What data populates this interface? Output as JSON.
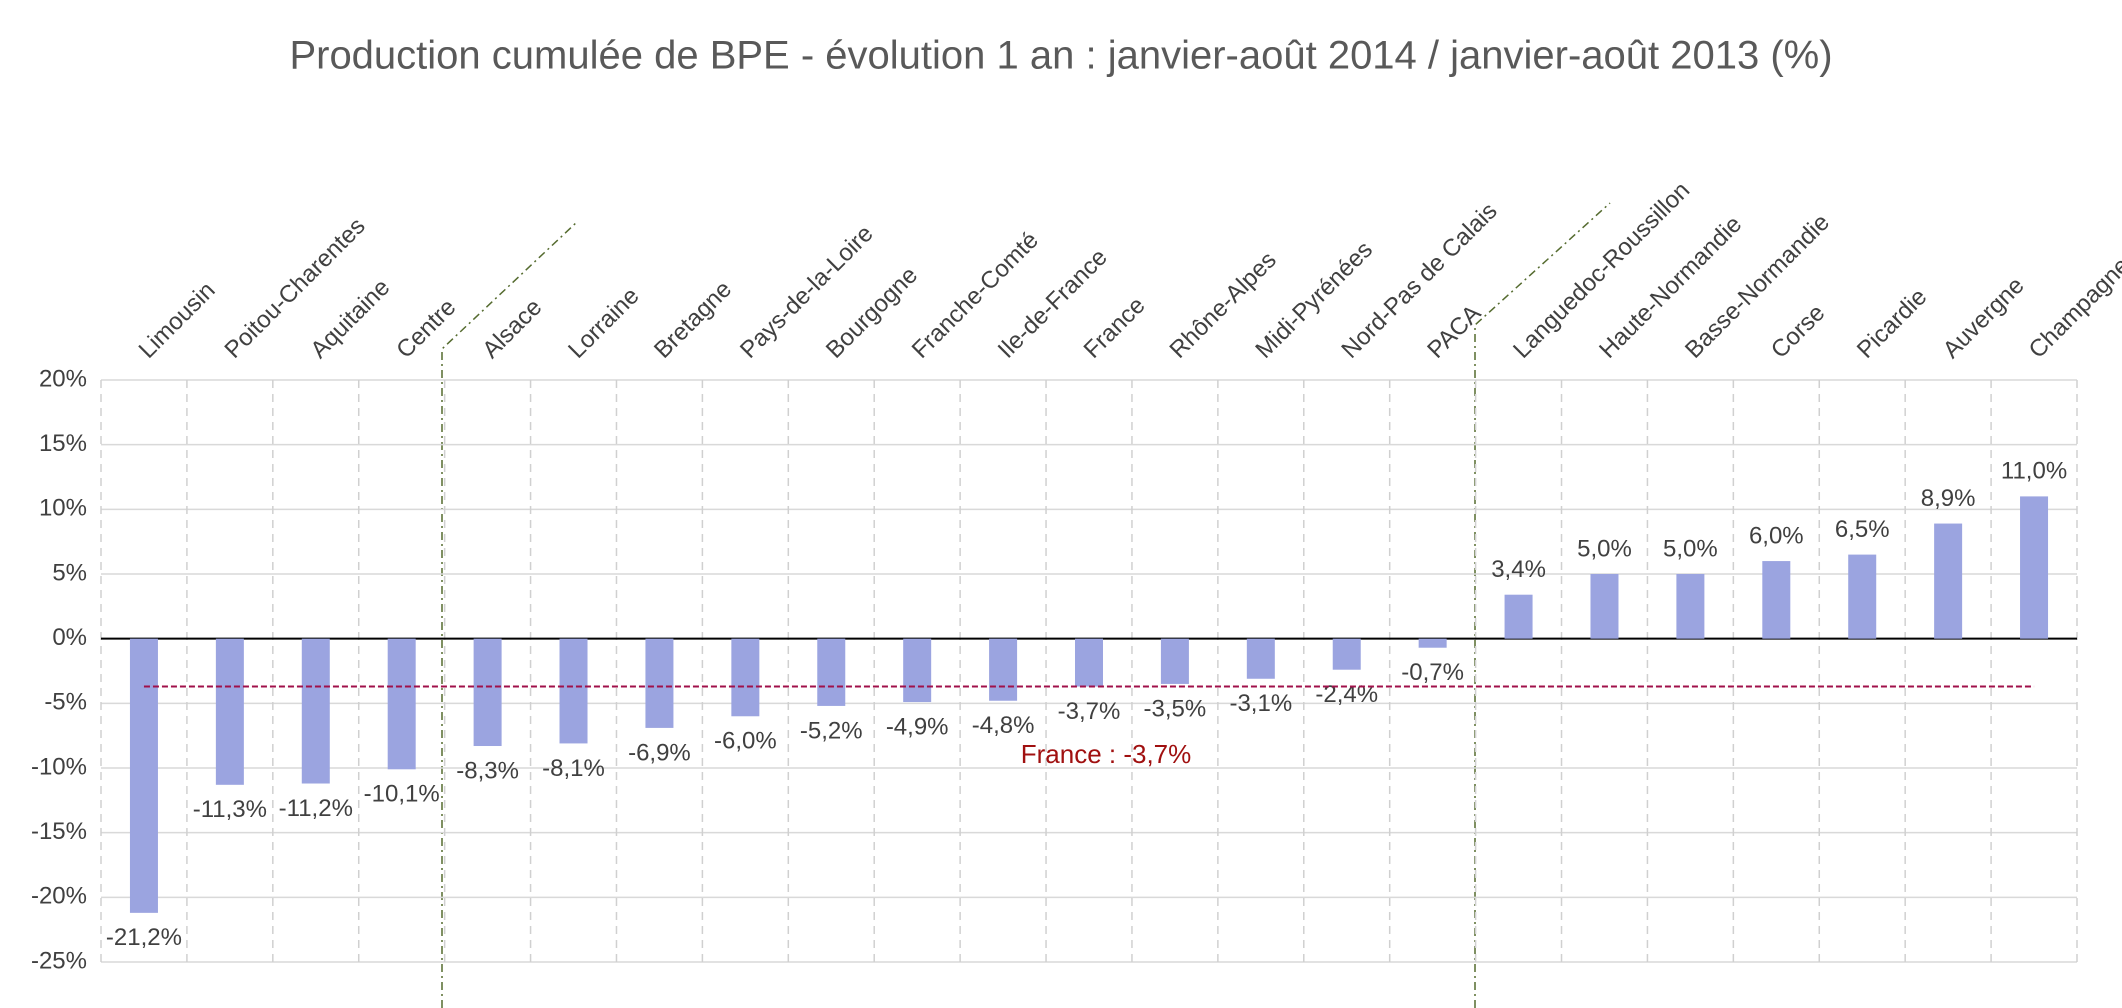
{
  "chart_data": {
    "type": "bar",
    "title": "Production cumulée de BPE - évolution 1 an : janvier-août 2014 / janvier-août 2013 (%)",
    "categories": [
      "Limousin",
      "Poitou-Charentes",
      "Aquitaine",
      "Centre",
      "Alsace",
      "Lorraine",
      "Bretagne",
      "Pays-de-la-Loire",
      "Bourgogne",
      "Franche-Comté",
      "Ile-de-France",
      "France",
      "Rhône-Alpes",
      "Midi-Pyrénées",
      "Nord-Pas de Calais",
      "PACA",
      "Languedoc-Roussillon",
      "Haute-Normandie",
      "Basse-Normandie",
      "Corse",
      "Picardie",
      "Auvergne",
      "Champagne-Ardenne"
    ],
    "values": [
      -21.2,
      -11.3,
      -11.2,
      -10.1,
      -8.3,
      -8.1,
      -6.9,
      -6.0,
      -5.2,
      -4.9,
      -4.8,
      -3.7,
      -3.5,
      -3.1,
      -2.4,
      -0.7,
      3.4,
      5.0,
      5.0,
      6.0,
      6.5,
      8.9,
      11.0
    ],
    "value_labels": [
      "-21,2%",
      "-11,3%",
      "-11,2%",
      "-10,1%",
      "-8,3%",
      "-8,1%",
      "-6,9%",
      "-6,0%",
      "-5,2%",
      "-4,9%",
      "-4,8%",
      "-3,7%",
      "-3,5%",
      "-3,1%",
      "-2,4%",
      "-0,7%",
      "3,4%",
      "5,0%",
      "5,0%",
      "6,0%",
      "6,5%",
      "8,9%",
      "11,0%"
    ],
    "color": "#9ba4e0",
    "ylim": [
      -25,
      20
    ],
    "yticks": [
      {
        "value": 20,
        "label": "20%"
      },
      {
        "value": 15,
        "label": "15%"
      },
      {
        "value": 10,
        "label": "10%"
      },
      {
        "value": 5,
        "label": "5%"
      },
      {
        "value": 0,
        "label": "0%"
      },
      {
        "value": -5,
        "label": "-5%"
      },
      {
        "value": -10,
        "label": "-10%"
      },
      {
        "value": -15,
        "label": "-15%"
      },
      {
        "value": -20,
        "label": "-20%"
      },
      {
        "value": -25,
        "label": "-25%"
      }
    ],
    "grid": true,
    "reference_line": {
      "value": -3.7,
      "label": "France : -3,7%",
      "color": "#a0104a",
      "label_color": "#a01010"
    }
  }
}
